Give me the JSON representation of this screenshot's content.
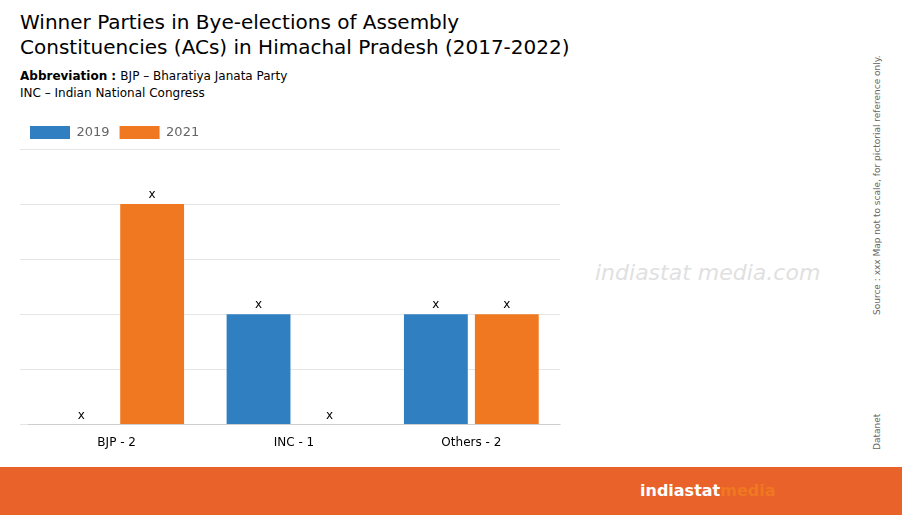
{
  "chart_data": {
    "type": "bar",
    "title": [
      "Winner Parties in Bye-elections of Assembly",
      "Constituencies (ACs) in Himachal Pradesh (2017-2022)"
    ],
    "categories": [
      "BJP - 2",
      "INC - 1",
      "Others - 2"
    ],
    "series": [
      {
        "name": "2019",
        "color": "#2f7fc1",
        "values": [
          0,
          1,
          1
        ]
      },
      {
        "name": "2021",
        "color": "#f07820",
        "values": [
          2,
          0,
          1
        ]
      }
    ],
    "ylim": [
      0,
      2.5
    ],
    "yticks": [
      0,
      0.5,
      1,
      1.5,
      2,
      2.5
    ],
    "grid": true,
    "tick_labels": "x",
    "legend": "top",
    "annotations": [
      {
        "text": "Abbreviation : "
      },
      {
        "text": "BJP – Bharatiya Janata Party"
      },
      {
        "text": "INC – Indian National Congress"
      },
      {
        "text": "indiastat"
      },
      {
        "text": "media.com"
      },
      {
        "text": "indiastat",
        "color": "#ffffff"
      },
      {
        "text": "media",
        "color": "#f07820"
      },
      {
        "text": "Source : xxx   Map not to scale, for pictorial reference only."
      },
      {
        "text": "Datanet"
      },
      {
        "text": "x",
        "series": "2019",
        "category": "BJP - 2"
      },
      {
        "text": "x",
        "series": "2019",
        "category": "INC - 1"
      },
      {
        "text": "x",
        "series": "2019",
        "category": "Others - 2"
      },
      {
        "text": "x",
        "series": "2021",
        "category": "BJP - 2"
      },
      {
        "text": "x",
        "series": "2021",
        "category": "INC - 1"
      },
      {
        "text": "x",
        "series": "2021",
        "category": "Others - 2"
      }
    ]
  }
}
